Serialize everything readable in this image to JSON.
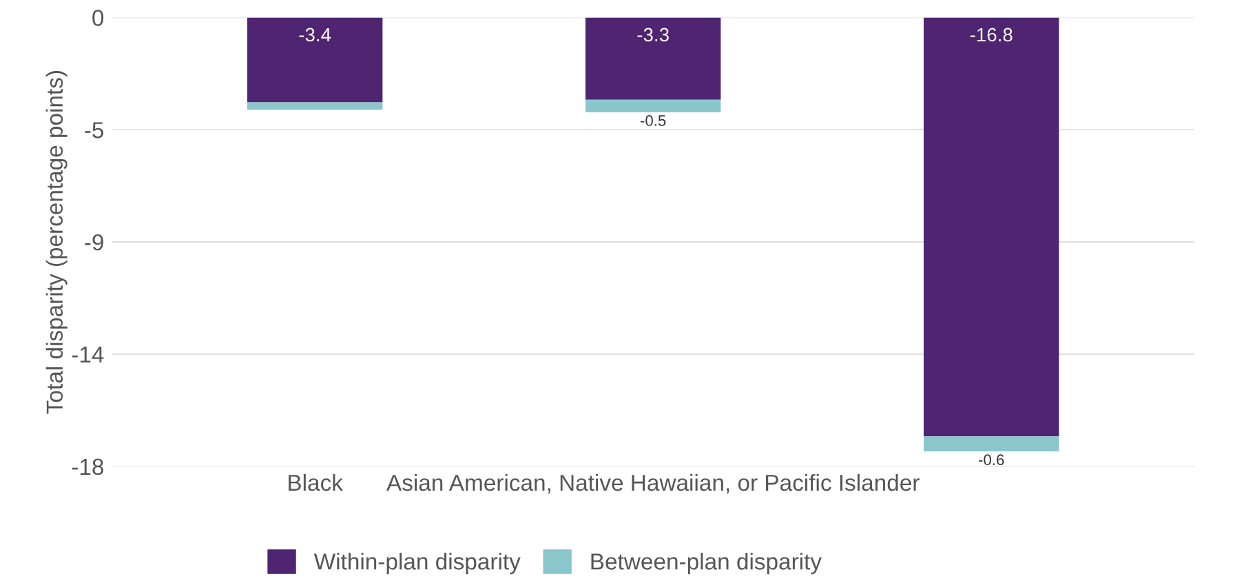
{
  "chart_data": {
    "type": "bar",
    "ylabel": "Total disparity (percentage points)",
    "categories": [
      "Black",
      "Asian American, Native Hawaiian, or Pacific Islander",
      null
    ],
    "stacked": true,
    "series": [
      {
        "name": "Within-plan disparity",
        "color": "#4f2572",
        "values": [
          -3.4,
          -3.3,
          -16.8
        ],
        "value_labels": [
          "-3.4",
          "-3.3",
          "-16.8"
        ]
      },
      {
        "name": "Between-plan disparity",
        "color": "#8ac6cc",
        "values": [
          -0.3,
          -0.5,
          -0.6
        ],
        "value_labels": [
          null,
          "-0.5",
          "-0.6"
        ]
      }
    ],
    "ylim": [
      -18,
      0
    ],
    "yticks": [
      0,
      {
        "value": -4.5,
        "label": "-5"
      },
      -9,
      {
        "value": -13.5,
        "label": "-14"
      },
      -18
    ],
    "grid": "y",
    "legend": "bottom"
  }
}
